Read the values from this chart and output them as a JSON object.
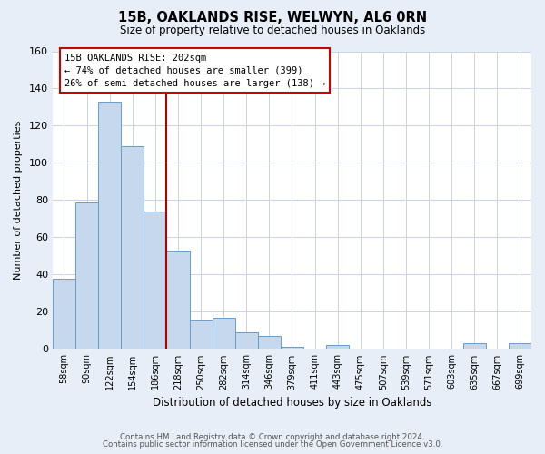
{
  "title": "15B, OAKLANDS RISE, WELWYN, AL6 0RN",
  "subtitle": "Size of property relative to detached houses in Oaklands",
  "xlabel": "Distribution of detached houses by size in Oaklands",
  "ylabel": "Number of detached properties",
  "bar_labels": [
    "58sqm",
    "90sqm",
    "122sqm",
    "154sqm",
    "186sqm",
    "218sqm",
    "250sqm",
    "282sqm",
    "314sqm",
    "346sqm",
    "379sqm",
    "411sqm",
    "443sqm",
    "475sqm",
    "507sqm",
    "539sqm",
    "571sqm",
    "603sqm",
    "635sqm",
    "667sqm",
    "699sqm"
  ],
  "bar_values": [
    38,
    79,
    133,
    109,
    74,
    53,
    16,
    17,
    9,
    7,
    1,
    0,
    2,
    0,
    0,
    0,
    0,
    0,
    3,
    0,
    3
  ],
  "bar_color": "#c5d8ee",
  "bar_edge_color": "#6a9cc9",
  "ylim": [
    0,
    160
  ],
  "yticks": [
    0,
    20,
    40,
    60,
    80,
    100,
    120,
    140,
    160
  ],
  "vline_x": 4.5,
  "vline_color": "#b00000",
  "annotation_box_text": "15B OAKLANDS RISE: 202sqm\n← 74% of detached houses are smaller (399)\n26% of semi-detached houses are larger (138) →",
  "footer1": "Contains HM Land Registry data © Crown copyright and database right 2024.",
  "footer2": "Contains public sector information licensed under the Open Government Licence v3.0.",
  "bg_color": "#e8eef7",
  "plot_bg_color": "#ffffff",
  "grid_color": "#c8d4e4"
}
